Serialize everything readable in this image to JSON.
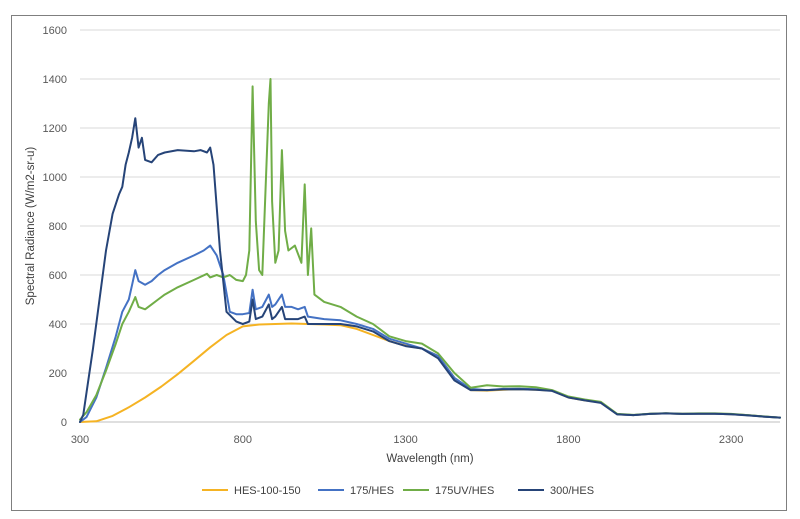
{
  "chart_data": {
    "type": "line",
    "title": "",
    "xlabel": "Wavelength (nm)",
    "ylabel": "Spectral Radiance (W/m2-sr-u)",
    "xlim": [
      300,
      2450
    ],
    "ylim": [
      0,
      1600
    ],
    "x_ticks": [
      300,
      800,
      1300,
      1800,
      2300
    ],
    "y_ticks": [
      0,
      200,
      400,
      600,
      800,
      1000,
      1200,
      1400,
      1600
    ],
    "grid": true,
    "legend_position": "bottom",
    "series": [
      {
        "name": "HES-100-150",
        "color": "#f5b323",
        "points": [
          [
            300,
            0
          ],
          [
            350,
            3
          ],
          [
            400,
            25
          ],
          [
            450,
            60
          ],
          [
            500,
            100
          ],
          [
            550,
            145
          ],
          [
            600,
            195
          ],
          [
            650,
            250
          ],
          [
            700,
            305
          ],
          [
            750,
            355
          ],
          [
            800,
            390
          ],
          [
            850,
            398
          ],
          [
            900,
            400
          ],
          [
            950,
            402
          ],
          [
            1000,
            400
          ],
          [
            1050,
            398
          ],
          [
            1100,
            395
          ],
          [
            1150,
            380
          ],
          [
            1200,
            355
          ],
          [
            1250,
            330
          ],
          [
            1300,
            312
          ],
          [
            1350,
            300
          ],
          [
            1400,
            270
          ],
          [
            1450,
            180
          ],
          [
            1500,
            130
          ],
          [
            1550,
            128
          ],
          [
            1600,
            132
          ],
          [
            1650,
            134
          ],
          [
            1700,
            132
          ],
          [
            1750,
            128
          ],
          [
            1800,
            100
          ],
          [
            1850,
            88
          ],
          [
            1900,
            80
          ],
          [
            1950,
            32
          ],
          [
            2000,
            28
          ],
          [
            2050,
            33
          ],
          [
            2100,
            35
          ],
          [
            2150,
            33
          ],
          [
            2200,
            34
          ],
          [
            2250,
            34
          ],
          [
            2300,
            32
          ],
          [
            2350,
            28
          ],
          [
            2400,
            22
          ],
          [
            2450,
            18
          ]
        ]
      },
      {
        "name": "175/HES",
        "color": "#4472c4",
        "points": [
          [
            300,
            0
          ],
          [
            320,
            20
          ],
          [
            350,
            100
          ],
          [
            380,
            220
          ],
          [
            410,
            350
          ],
          [
            430,
            450
          ],
          [
            450,
            500
          ],
          [
            460,
            560
          ],
          [
            470,
            620
          ],
          [
            480,
            575
          ],
          [
            500,
            560
          ],
          [
            520,
            575
          ],
          [
            540,
            600
          ],
          [
            560,
            620
          ],
          [
            600,
            650
          ],
          [
            650,
            680
          ],
          [
            680,
            700
          ],
          [
            700,
            720
          ],
          [
            720,
            680
          ],
          [
            740,
            600
          ],
          [
            760,
            450
          ],
          [
            780,
            440
          ],
          [
            800,
            440
          ],
          [
            820,
            445
          ],
          [
            830,
            540
          ],
          [
            840,
            460
          ],
          [
            860,
            470
          ],
          [
            880,
            520
          ],
          [
            890,
            470
          ],
          [
            900,
            480
          ],
          [
            920,
            520
          ],
          [
            930,
            470
          ],
          [
            950,
            470
          ],
          [
            970,
            460
          ],
          [
            990,
            470
          ],
          [
            1000,
            430
          ],
          [
            1050,
            420
          ],
          [
            1100,
            415
          ],
          [
            1150,
            400
          ],
          [
            1200,
            380
          ],
          [
            1250,
            340
          ],
          [
            1300,
            320
          ],
          [
            1350,
            300
          ],
          [
            1400,
            270
          ],
          [
            1450,
            180
          ],
          [
            1500,
            135
          ],
          [
            1550,
            130
          ],
          [
            1600,
            135
          ],
          [
            1650,
            136
          ],
          [
            1700,
            134
          ],
          [
            1750,
            128
          ],
          [
            1800,
            102
          ],
          [
            1850,
            90
          ],
          [
            1900,
            80
          ],
          [
            1950,
            32
          ],
          [
            2000,
            28
          ],
          [
            2050,
            33
          ],
          [
            2100,
            35
          ],
          [
            2150,
            33
          ],
          [
            2200,
            34
          ],
          [
            2250,
            34
          ],
          [
            2300,
            32
          ],
          [
            2350,
            28
          ],
          [
            2400,
            22
          ],
          [
            2450,
            18
          ]
        ]
      },
      {
        "name": "175UV/HES",
        "color": "#70ad47",
        "points": [
          [
            300,
            10
          ],
          [
            320,
            40
          ],
          [
            350,
            110
          ],
          [
            380,
            210
          ],
          [
            410,
            320
          ],
          [
            430,
            400
          ],
          [
            450,
            450
          ],
          [
            460,
            480
          ],
          [
            470,
            510
          ],
          [
            480,
            470
          ],
          [
            500,
            460
          ],
          [
            520,
            480
          ],
          [
            540,
            500
          ],
          [
            560,
            520
          ],
          [
            600,
            550
          ],
          [
            650,
            580
          ],
          [
            690,
            605
          ],
          [
            700,
            590
          ],
          [
            720,
            600
          ],
          [
            740,
            590
          ],
          [
            760,
            600
          ],
          [
            780,
            580
          ],
          [
            800,
            575
          ],
          [
            810,
            600
          ],
          [
            820,
            700
          ],
          [
            830,
            1370
          ],
          [
            840,
            820
          ],
          [
            850,
            620
          ],
          [
            860,
            600
          ],
          [
            880,
            1300
          ],
          [
            885,
            1400
          ],
          [
            890,
            900
          ],
          [
            900,
            650
          ],
          [
            910,
            700
          ],
          [
            920,
            1110
          ],
          [
            930,
            780
          ],
          [
            940,
            700
          ],
          [
            960,
            720
          ],
          [
            980,
            650
          ],
          [
            990,
            970
          ],
          [
            1000,
            600
          ],
          [
            1010,
            790
          ],
          [
            1020,
            520
          ],
          [
            1050,
            490
          ],
          [
            1100,
            470
          ],
          [
            1150,
            430
          ],
          [
            1200,
            400
          ],
          [
            1250,
            350
          ],
          [
            1300,
            330
          ],
          [
            1350,
            320
          ],
          [
            1400,
            280
          ],
          [
            1450,
            200
          ],
          [
            1500,
            140
          ],
          [
            1550,
            150
          ],
          [
            1600,
            145
          ],
          [
            1650,
            146
          ],
          [
            1700,
            142
          ],
          [
            1750,
            130
          ],
          [
            1800,
            104
          ],
          [
            1850,
            92
          ],
          [
            1900,
            82
          ],
          [
            1950,
            33
          ],
          [
            2000,
            29
          ],
          [
            2050,
            34
          ],
          [
            2100,
            36
          ],
          [
            2150,
            34
          ],
          [
            2200,
            35
          ],
          [
            2250,
            35
          ],
          [
            2300,
            33
          ],
          [
            2350,
            28
          ],
          [
            2400,
            23
          ],
          [
            2450,
            18
          ]
        ]
      },
      {
        "name": "300/HES",
        "color": "#264478",
        "points": [
          [
            300,
            0
          ],
          [
            310,
            30
          ],
          [
            320,
            120
          ],
          [
            340,
            300
          ],
          [
            360,
            500
          ],
          [
            380,
            700
          ],
          [
            400,
            850
          ],
          [
            420,
            930
          ],
          [
            430,
            960
          ],
          [
            440,
            1050
          ],
          [
            450,
            1100
          ],
          [
            460,
            1160
          ],
          [
            470,
            1240
          ],
          [
            480,
            1120
          ],
          [
            490,
            1160
          ],
          [
            500,
            1070
          ],
          [
            520,
            1060
          ],
          [
            540,
            1090
          ],
          [
            560,
            1100
          ],
          [
            600,
            1110
          ],
          [
            650,
            1105
          ],
          [
            670,
            1110
          ],
          [
            690,
            1100
          ],
          [
            700,
            1120
          ],
          [
            710,
            1050
          ],
          [
            730,
            700
          ],
          [
            750,
            450
          ],
          [
            780,
            410
          ],
          [
            800,
            400
          ],
          [
            820,
            410
          ],
          [
            830,
            500
          ],
          [
            840,
            420
          ],
          [
            860,
            430
          ],
          [
            880,
            480
          ],
          [
            890,
            420
          ],
          [
            900,
            430
          ],
          [
            920,
            470
          ],
          [
            930,
            420
          ],
          [
            950,
            420
          ],
          [
            970,
            420
          ],
          [
            990,
            430
          ],
          [
            1000,
            400
          ],
          [
            1050,
            400
          ],
          [
            1100,
            400
          ],
          [
            1150,
            390
          ],
          [
            1200,
            370
          ],
          [
            1250,
            330
          ],
          [
            1300,
            310
          ],
          [
            1350,
            300
          ],
          [
            1400,
            260
          ],
          [
            1450,
            170
          ],
          [
            1500,
            130
          ],
          [
            1550,
            130
          ],
          [
            1600,
            133
          ],
          [
            1650,
            134
          ],
          [
            1700,
            132
          ],
          [
            1750,
            127
          ],
          [
            1800,
            100
          ],
          [
            1850,
            88
          ],
          [
            1900,
            78
          ],
          [
            1950,
            31
          ],
          [
            2000,
            28
          ],
          [
            2050,
            33
          ],
          [
            2100,
            35
          ],
          [
            2150,
            33
          ],
          [
            2200,
            34
          ],
          [
            2250,
            34
          ],
          [
            2300,
            32
          ],
          [
            2350,
            27
          ],
          [
            2400,
            22
          ],
          [
            2450,
            18
          ]
        ]
      }
    ]
  }
}
